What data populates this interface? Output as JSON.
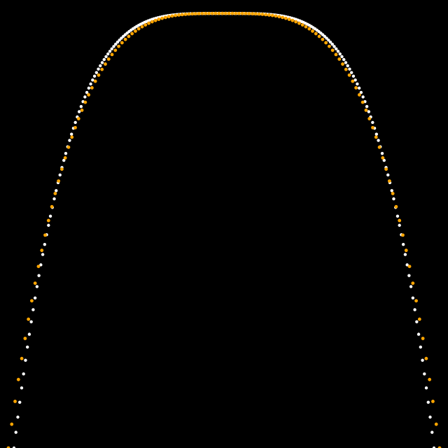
{
  "background": "#000000",
  "chart_data": {
    "type": "scatter",
    "title": "",
    "xlabel": "",
    "ylabel": "",
    "grid": false,
    "legend": "none",
    "xlim": [
      -1.0,
      1.0
    ],
    "ylim": [
      0.0,
      1.0
    ],
    "series": [
      {
        "color": "#ffffff",
        "marker_style": "dense dots forming a continuous curve",
        "x_start": -0.9375,
        "x_end": 0.9375,
        "count": 220,
        "shape": "flat-topped arch, y = 0.97 * (1 - |x/0.9375|^4)"
      },
      {
        "color": "#ffa500",
        "marker_style": "sparse dots",
        "x_start": -0.9625,
        "x_end": 0.9625,
        "count": 130,
        "shape": "flat-topped arch slightly wider than white curve, y = 0.97 * (1 - |x/0.9625|^3.6)"
      }
    ]
  }
}
